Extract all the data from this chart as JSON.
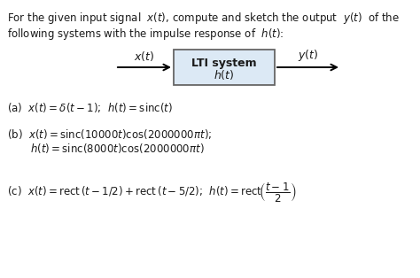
{
  "bg_color": "#ffffff",
  "text_color": "#1a1a1a",
  "title_line1": "For the given input signal  $x(t)$, compute and sketch the output  $y(t)$  of the",
  "title_line2": "following systems with the impulse response of  $h(t)$:",
  "block_label_line1": "LTI system",
  "block_label_line2": "$h(t)$",
  "input_label": "$x(t)$",
  "output_label": "$y(t)$",
  "part_a": "(a)  $x(t) = \\delta(t-1)$;  $h(t) = \\mathrm{sinc}(t)$",
  "part_b1": "(b)  $x(t) = \\mathrm{sinc}(10000t)\\cos(2000000\\pi t)$;",
  "part_b2": "       $h(t) = \\mathrm{sinc}(8000t)\\cos(2000000\\pi t)$",
  "part_c": "(c)  $x(t) = \\mathrm{rect}\\,(t-1/2)+\\mathrm{rect}\\,(t-5/2)$;  $h(t) = \\mathrm{rect}\\!\\left(\\dfrac{t-1}{2}\\right)$",
  "box_facecolor": "#dce9f5",
  "box_edgecolor": "#666666",
  "font_size_title": 8.5,
  "font_size_block": 9.0,
  "font_size_parts": 8.5
}
